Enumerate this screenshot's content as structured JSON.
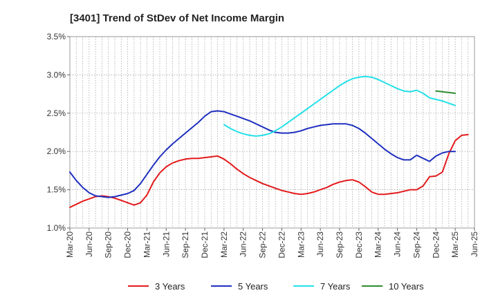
{
  "chart_data": {
    "type": "line",
    "title": "[3401]  Trend of StDev of Net Income Margin",
    "xlabel": "",
    "ylabel": "",
    "ylim": [
      1.0,
      3.5
    ],
    "yticks": [
      "1.0%",
      "1.5%",
      "2.0%",
      "2.5%",
      "3.0%",
      "3.5%"
    ],
    "xticks": [
      "Mar-20",
      "Jun-20",
      "Sep-20",
      "Dec-20",
      "Mar-21",
      "Jun-21",
      "Sep-21",
      "Dec-21",
      "Mar-22",
      "Jun-22",
      "Sep-22",
      "Dec-22",
      "Mar-23",
      "Jun-23",
      "Sep-23",
      "Dec-23",
      "Mar-24",
      "Jun-24",
      "Sep-24",
      "Dec-24",
      "Mar-25",
      "Jun-25"
    ],
    "grid": true,
    "legend_position": "bottom",
    "series": [
      {
        "name": "3 Years",
        "color": "#e31a1c",
        "points": [
          [
            "2020-03",
            1.27
          ],
          [
            "2020-04",
            1.31
          ],
          [
            "2020-05",
            1.35
          ],
          [
            "2020-06",
            1.38
          ],
          [
            "2020-07",
            1.41
          ],
          [
            "2020-08",
            1.42
          ],
          [
            "2020-09",
            1.41
          ],
          [
            "2020-10",
            1.39
          ],
          [
            "2020-11",
            1.36
          ],
          [
            "2020-12",
            1.33
          ],
          [
            "2021-01",
            1.3
          ],
          [
            "2021-02",
            1.33
          ],
          [
            "2021-03",
            1.43
          ],
          [
            "2021-04",
            1.6
          ],
          [
            "2021-05",
            1.72
          ],
          [
            "2021-06",
            1.8
          ],
          [
            "2021-07",
            1.85
          ],
          [
            "2021-08",
            1.88
          ],
          [
            "2021-09",
            1.9
          ],
          [
            "2021-10",
            1.91
          ],
          [
            "2021-11",
            1.91
          ],
          [
            "2021-12",
            1.92
          ],
          [
            "2022-01",
            1.93
          ],
          [
            "2022-02",
            1.94
          ],
          [
            "2022-03",
            1.9
          ],
          [
            "2022-04",
            1.84
          ],
          [
            "2022-05",
            1.77
          ],
          [
            "2022-06",
            1.71
          ],
          [
            "2022-07",
            1.66
          ],
          [
            "2022-08",
            1.62
          ],
          [
            "2022-09",
            1.58
          ],
          [
            "2022-10",
            1.55
          ],
          [
            "2022-11",
            1.52
          ],
          [
            "2022-12",
            1.49
          ],
          [
            "2023-01",
            1.47
          ],
          [
            "2023-02",
            1.45
          ],
          [
            "2023-03",
            1.44
          ],
          [
            "2023-04",
            1.45
          ],
          [
            "2023-05",
            1.47
          ],
          [
            "2023-06",
            1.5
          ],
          [
            "2023-07",
            1.53
          ],
          [
            "2023-08",
            1.57
          ],
          [
            "2023-09",
            1.6
          ],
          [
            "2023-10",
            1.62
          ],
          [
            "2023-11",
            1.63
          ],
          [
            "2023-12",
            1.6
          ],
          [
            "2024-01",
            1.54
          ],
          [
            "2024-02",
            1.47
          ],
          [
            "2024-03",
            1.44
          ],
          [
            "2024-04",
            1.44
          ],
          [
            "2024-05",
            1.45
          ],
          [
            "2024-06",
            1.46
          ],
          [
            "2024-07",
            1.48
          ],
          [
            "2024-08",
            1.5
          ],
          [
            "2024-09",
            1.5
          ],
          [
            "2024-10",
            1.55
          ],
          [
            "2024-11",
            1.67
          ],
          [
            "2024-12",
            1.68
          ],
          [
            "2025-01",
            1.73
          ],
          [
            "2025-02",
            1.97
          ],
          [
            "2025-03",
            2.14
          ],
          [
            "2025-04",
            2.21
          ],
          [
            "2025-05",
            2.22
          ]
        ]
      },
      {
        "name": "5 Years",
        "color": "#1f2fbf",
        "points": [
          [
            "2020-03",
            1.73
          ],
          [
            "2020-04",
            1.62
          ],
          [
            "2020-05",
            1.53
          ],
          [
            "2020-06",
            1.46
          ],
          [
            "2020-07",
            1.42
          ],
          [
            "2020-08",
            1.41
          ],
          [
            "2020-09",
            1.4
          ],
          [
            "2020-10",
            1.41
          ],
          [
            "2020-11",
            1.43
          ],
          [
            "2020-12",
            1.45
          ],
          [
            "2021-01",
            1.49
          ],
          [
            "2021-02",
            1.58
          ],
          [
            "2021-03",
            1.7
          ],
          [
            "2021-04",
            1.82
          ],
          [
            "2021-05",
            1.93
          ],
          [
            "2021-06",
            2.02
          ],
          [
            "2021-07",
            2.1
          ],
          [
            "2021-08",
            2.17
          ],
          [
            "2021-09",
            2.24
          ],
          [
            "2021-10",
            2.31
          ],
          [
            "2021-11",
            2.38
          ],
          [
            "2021-12",
            2.46
          ],
          [
            "2022-01",
            2.52
          ],
          [
            "2022-02",
            2.53
          ],
          [
            "2022-03",
            2.52
          ],
          [
            "2022-04",
            2.49
          ],
          [
            "2022-05",
            2.46
          ],
          [
            "2022-06",
            2.43
          ],
          [
            "2022-07",
            2.4
          ],
          [
            "2022-08",
            2.36
          ],
          [
            "2022-09",
            2.32
          ],
          [
            "2022-10",
            2.28
          ],
          [
            "2022-11",
            2.25
          ],
          [
            "2022-12",
            2.24
          ],
          [
            "2023-01",
            2.24
          ],
          [
            "2023-02",
            2.25
          ],
          [
            "2023-03",
            2.27
          ],
          [
            "2023-04",
            2.3
          ],
          [
            "2023-05",
            2.32
          ],
          [
            "2023-06",
            2.34
          ],
          [
            "2023-07",
            2.35
          ],
          [
            "2023-08",
            2.36
          ],
          [
            "2023-09",
            2.36
          ],
          [
            "2023-10",
            2.36
          ],
          [
            "2023-11",
            2.34
          ],
          [
            "2023-12",
            2.3
          ],
          [
            "2024-01",
            2.24
          ],
          [
            "2024-02",
            2.17
          ],
          [
            "2024-03",
            2.1
          ],
          [
            "2024-04",
            2.03
          ],
          [
            "2024-05",
            1.97
          ],
          [
            "2024-06",
            1.92
          ],
          [
            "2024-07",
            1.89
          ],
          [
            "2024-08",
            1.89
          ],
          [
            "2024-09",
            1.95
          ],
          [
            "2024-10",
            1.91
          ],
          [
            "2024-11",
            1.87
          ],
          [
            "2024-12",
            1.94
          ],
          [
            "2025-01",
            1.98
          ],
          [
            "2025-02",
            2.0
          ],
          [
            "2025-03",
            2.0
          ]
        ]
      },
      {
        "name": "7 Years",
        "color": "#22e0e8",
        "points": [
          [
            "2022-03",
            2.35
          ],
          [
            "2022-04",
            2.3
          ],
          [
            "2022-05",
            2.26
          ],
          [
            "2022-06",
            2.23
          ],
          [
            "2022-07",
            2.21
          ],
          [
            "2022-08",
            2.2
          ],
          [
            "2022-09",
            2.21
          ],
          [
            "2022-10",
            2.23
          ],
          [
            "2022-11",
            2.27
          ],
          [
            "2022-12",
            2.32
          ],
          [
            "2023-01",
            2.38
          ],
          [
            "2023-02",
            2.44
          ],
          [
            "2023-03",
            2.5
          ],
          [
            "2023-04",
            2.56
          ],
          [
            "2023-05",
            2.62
          ],
          [
            "2023-06",
            2.68
          ],
          [
            "2023-07",
            2.74
          ],
          [
            "2023-08",
            2.8
          ],
          [
            "2023-09",
            2.86
          ],
          [
            "2023-10",
            2.91
          ],
          [
            "2023-11",
            2.95
          ],
          [
            "2023-12",
            2.97
          ],
          [
            "2024-01",
            2.98
          ],
          [
            "2024-02",
            2.97
          ],
          [
            "2024-03",
            2.94
          ],
          [
            "2024-04",
            2.9
          ],
          [
            "2024-05",
            2.86
          ],
          [
            "2024-06",
            2.82
          ],
          [
            "2024-07",
            2.79
          ],
          [
            "2024-08",
            2.78
          ],
          [
            "2024-09",
            2.8
          ],
          [
            "2024-10",
            2.76
          ],
          [
            "2024-11",
            2.7
          ],
          [
            "2024-12",
            2.68
          ],
          [
            "2025-01",
            2.66
          ],
          [
            "2025-02",
            2.63
          ],
          [
            "2025-03",
            2.6
          ]
        ]
      },
      {
        "name": "10 Years",
        "color": "#2e8b2e",
        "points": [
          [
            "2024-12",
            2.79
          ],
          [
            "2025-03",
            2.76
          ]
        ]
      }
    ]
  }
}
